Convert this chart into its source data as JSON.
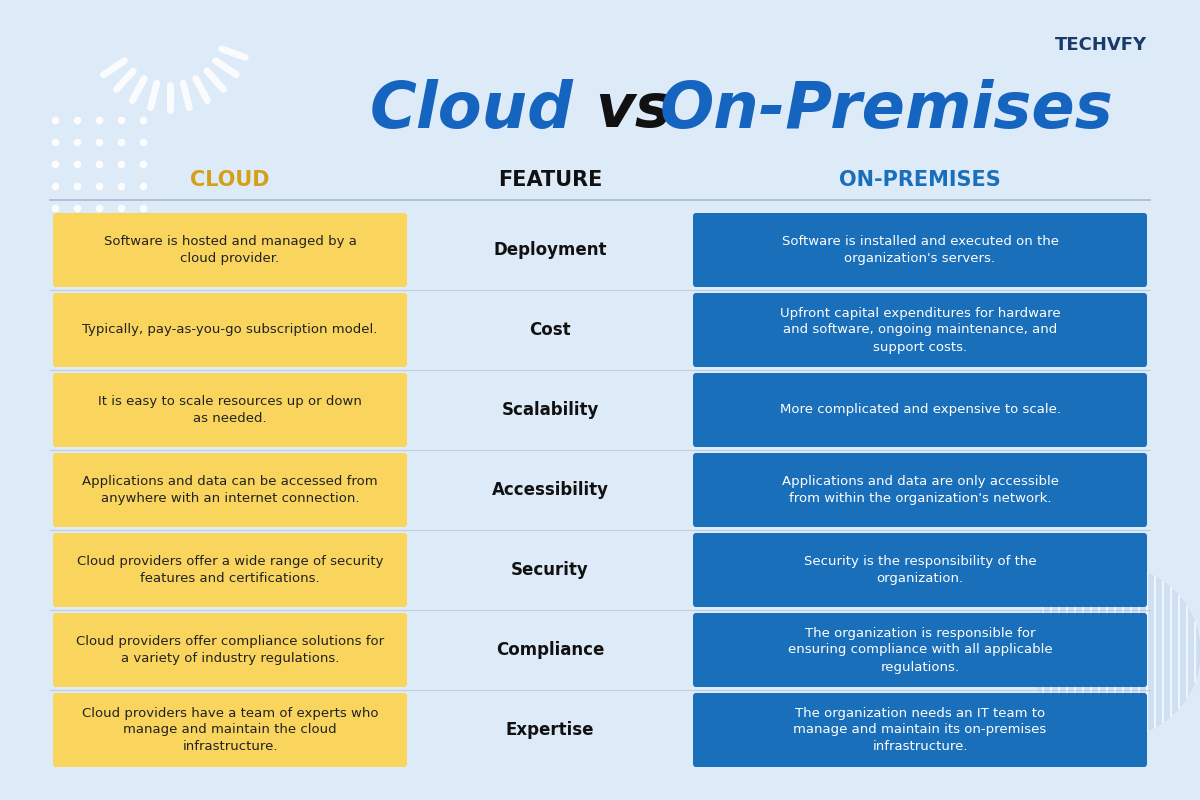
{
  "title_cloud": "Cloud",
  "title_vs": "vs",
  "title_premises": "On-Premises",
  "title_fontsize": 46,
  "bg_color": "#ddeaf8",
  "cloud_color": "#f9d55e",
  "on_prem_color": "#1a6fba",
  "cloud_header_color": "#d4a017",
  "on_prem_header_color": "#1a6fba",
  "feature_header_color": "#111111",
  "cloud_text_color": "#222222",
  "on_prem_text_color": "#ffffff",
  "feature_text_color": "#111111",
  "header_cloud_label": "CLOUD",
  "header_feature_label": "FEATURE",
  "header_on_prem_label": "ON-PREMISES",
  "rows": [
    {
      "feature": "Deployment",
      "cloud": "Software is hosted and managed by a\ncloud provider.",
      "on_prem": "Software is installed and executed on the\norganization's servers."
    },
    {
      "feature": "Cost",
      "cloud": "Typically, pay-as-you-go subscription model.",
      "on_prem": "Upfront capital expenditures for hardware\nand software, ongoing maintenance, and\nsupport costs."
    },
    {
      "feature": "Scalability",
      "cloud": "It is easy to scale resources up or down\nas needed.",
      "on_prem": "More complicated and expensive to scale."
    },
    {
      "feature": "Accessibility",
      "cloud": "Applications and data can be accessed from\nanywhere with an internet connection.",
      "on_prem": "Applications and data are only accessible\nfrom within the organization's network."
    },
    {
      "feature": "Security",
      "cloud": "Cloud providers offer a wide range of security\nfeatures and certifications.",
      "on_prem": "Security is the responsibility of the\norganization."
    },
    {
      "feature": "Compliance",
      "cloud": "Cloud providers offer compliance solutions for\na variety of industry regulations.",
      "on_prem": "The organization is responsible for\nensuring compliance with all applicable\nregulations."
    },
    {
      "feature": "Expertise",
      "cloud": "Cloud providers have a team of experts who\nmanage and maintain the cloud\ninfrastructure.",
      "on_prem": "The organization needs an IT team to\nmanage and maintain its on-premises\ninfrastructure."
    }
  ]
}
